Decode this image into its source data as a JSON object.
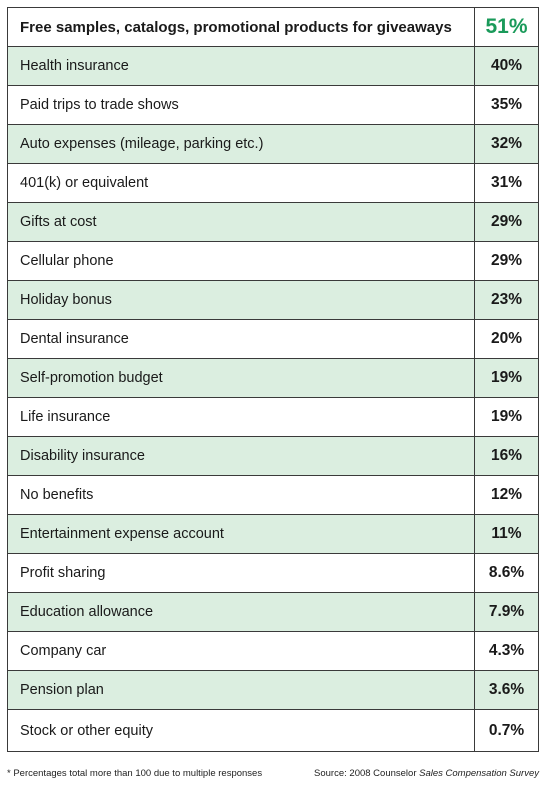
{
  "chart_data": {
    "type": "table",
    "header": {
      "label": "Free samples, catalogs, promotional products for giveaways",
      "value": "51%"
    },
    "rows": [
      {
        "label": "Health insurance",
        "value": "40%"
      },
      {
        "label": "Paid trips to trade shows",
        "value": "35%"
      },
      {
        "label": "Auto expenses (mileage, parking etc.)",
        "value": "32%"
      },
      {
        "label": "401(k) or equivalent",
        "value": "31%"
      },
      {
        "label": "Gifts at cost",
        "value": "29%"
      },
      {
        "label": "Cellular phone",
        "value": "29%"
      },
      {
        "label": "Holiday bonus",
        "value": "23%"
      },
      {
        "label": "Dental insurance",
        "value": "20%"
      },
      {
        "label": "Self-promotion budget",
        "value": "19%"
      },
      {
        "label": "Life insurance",
        "value": "19%"
      },
      {
        "label": "Disability insurance",
        "value": "16%"
      },
      {
        "label": "No benefits",
        "value": "12%"
      },
      {
        "label": "Entertainment expense account",
        "value": "11%"
      },
      {
        "label": "Profit sharing",
        "value": "8.6%"
      },
      {
        "label": "Education allowance",
        "value": "7.9%"
      },
      {
        "label": "Company car",
        "value": "4.3%"
      },
      {
        "label": "Pension plan",
        "value": "3.6%"
      },
      {
        "label": "Stock or other equity",
        "value": "0.7%"
      }
    ]
  },
  "footer": {
    "footnote": "* Percentages total more than 100 due to multiple responses",
    "source_prefix": "Source: 2008 Counselor ",
    "source_title": "Sales Compensation Survey"
  },
  "colors": {
    "shaded_row": "#dbeee0",
    "highlight_value": "#1a9a5a",
    "border": "#3a3a3a"
  }
}
